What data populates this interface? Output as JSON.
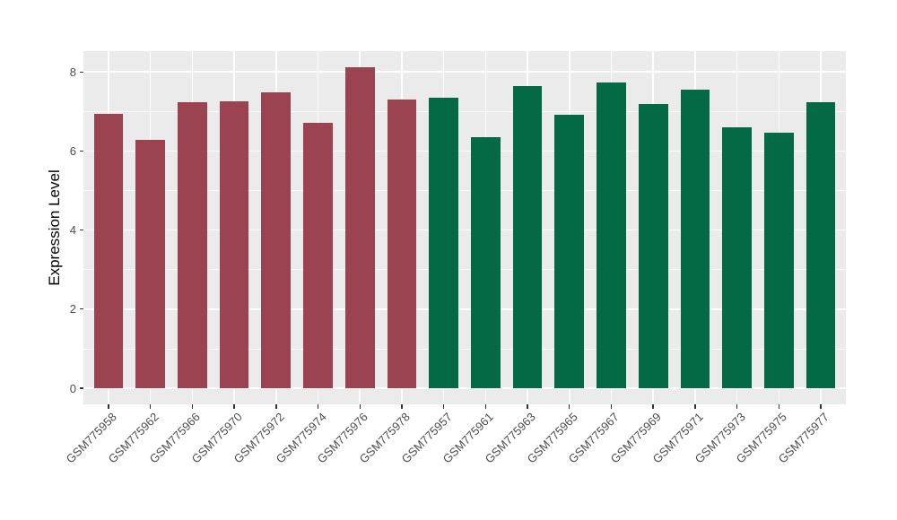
{
  "figure": {
    "background": "#FFFFFF",
    "panel_background": "#EBEBEB",
    "gridline_color": "#FFFFFF",
    "tick_color": "#333333",
    "axis_text_color": "#4D4D4D",
    "axis_title_color": "#000000"
  },
  "chart_data": {
    "type": "bar",
    "title": "",
    "xlabel": "",
    "ylabel": "Expression Level",
    "legend_position": "none",
    "grid": "on",
    "categories": [
      "GSM775958",
      "GSM775962",
      "GSM775966",
      "GSM775970",
      "GSM775972",
      "GSM775974",
      "GSM775976",
      "GSM775978",
      "GSM775957",
      "GSM775961",
      "GSM775963",
      "GSM775965",
      "GSM775967",
      "GSM775969",
      "GSM775971",
      "GSM775973",
      "GSM775975",
      "GSM775977"
    ],
    "values": [
      6.93,
      6.27,
      7.24,
      7.25,
      7.48,
      6.72,
      8.12,
      7.31,
      7.35,
      6.36,
      7.65,
      6.92,
      7.74,
      7.18,
      7.55,
      6.59,
      6.46,
      7.24
    ],
    "groups": [
      "A",
      "A",
      "A",
      "A",
      "A",
      "A",
      "A",
      "A",
      "B",
      "B",
      "B",
      "B",
      "B",
      "B",
      "B",
      "B",
      "B",
      "B"
    ],
    "group_colors": {
      "A": "#9C4351",
      "B": "#046A46"
    },
    "y_ticks": [
      0,
      2,
      4,
      6,
      8
    ],
    "y_minor_ticks": [
      1,
      3,
      5,
      7
    ],
    "ylim": [
      0,
      8.53
    ],
    "bar_width_fraction": 0.7
  }
}
